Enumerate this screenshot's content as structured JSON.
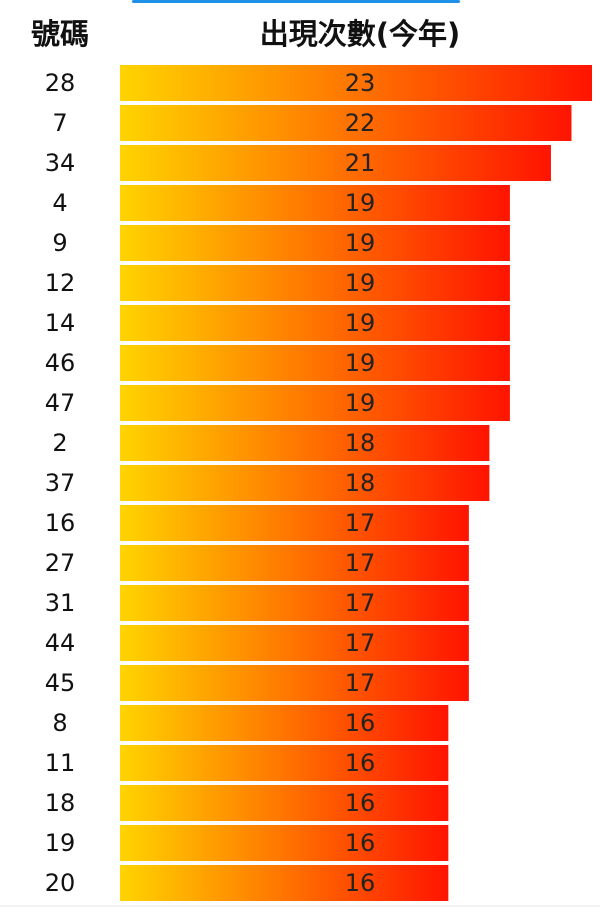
{
  "chart_data": {
    "type": "bar",
    "orientation": "horizontal",
    "category_label": "號碼",
    "value_label": "出現次數(今年)",
    "categories": [
      "28",
      "7",
      "34",
      "4",
      "9",
      "12",
      "14",
      "46",
      "47",
      "2",
      "37",
      "16",
      "27",
      "31",
      "44",
      "45",
      "8",
      "11",
      "18",
      "19",
      "20"
    ],
    "values": [
      23,
      22,
      21,
      19,
      19,
      19,
      19,
      19,
      19,
      18,
      18,
      17,
      17,
      17,
      17,
      17,
      16,
      16,
      16,
      16,
      16
    ],
    "colors": [
      "#ffd400",
      "#ff1400"
    ]
  }
}
